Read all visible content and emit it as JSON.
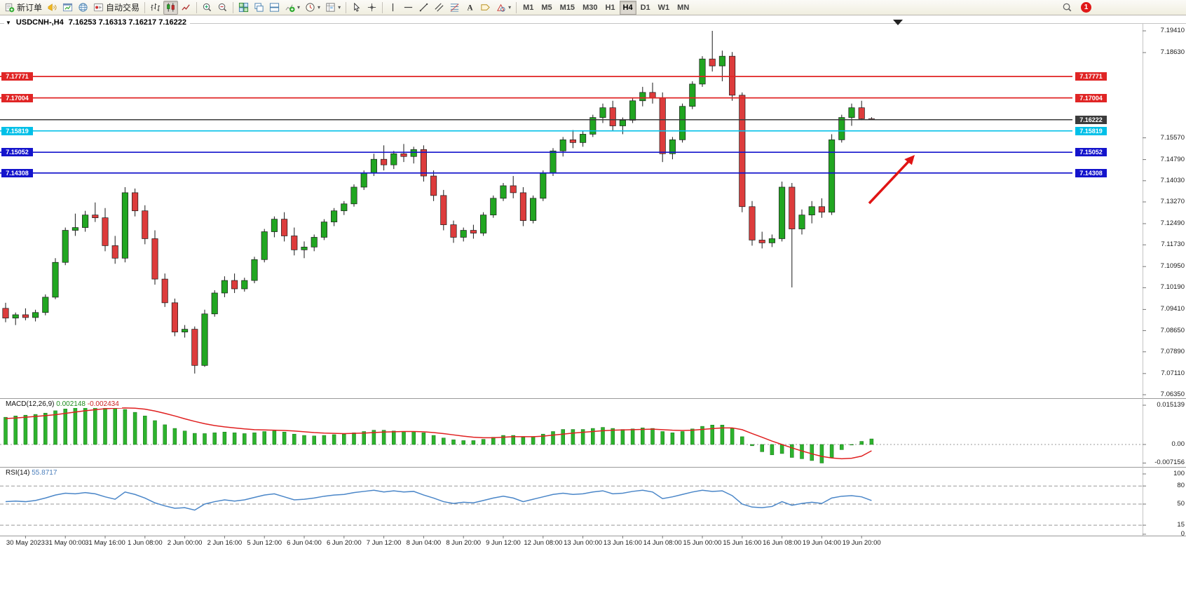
{
  "toolbar": {
    "caret_glyph": "▾",
    "notification_badge": "1",
    "active_timeframe": "H4",
    "timeframes": [
      "M1",
      "M5",
      "M15",
      "M30",
      "H1",
      "H4",
      "D1",
      "W1",
      "MN"
    ],
    "items": [
      {
        "name": "new-order-button",
        "icon": "new-order-icon",
        "label": "新订单"
      },
      {
        "name": "alerts-button",
        "icon": "alerts-horn-icon"
      },
      {
        "name": "market-watch-button",
        "icon": "chart-window-icon"
      },
      {
        "name": "web-terminal-button",
        "icon": "web-globe-icon"
      },
      {
        "name": "autotrading-button",
        "icon": "autotrading-icon",
        "label": "自动交易"
      },
      {
        "sep": true
      },
      {
        "name": "bar-chart-button",
        "icon": "bar-chart-icon"
      },
      {
        "name": "candlestick-chart-button",
        "icon": "candlestick-chart-icon",
        "pressed": true
      },
      {
        "name": "line-chart-button",
        "icon": "line-chart-icon"
      },
      {
        "sep": true
      },
      {
        "name": "zoom-in-button",
        "icon": "zoom-in-icon"
      },
      {
        "name": "zoom-out-button",
        "icon": "zoom-out-icon"
      },
      {
        "sep": true
      },
      {
        "name": "tile-windows-button",
        "icon": "tile-windows-icon"
      },
      {
        "name": "cascade-windows-button",
        "icon": "cascade-windows-icon"
      },
      {
        "name": "arrange-windows-button",
        "icon": "arrange-windows-icon"
      },
      {
        "name": "indicators-button",
        "icon": "indicators-icon",
        "caret": true
      },
      {
        "name": "periods-button",
        "icon": "periods-icon",
        "caret": true
      },
      {
        "name": "templates-button",
        "icon": "templates-icon",
        "caret": true
      },
      {
        "sep": true
      },
      {
        "name": "cursor-button",
        "icon": "cursor-icon"
      },
      {
        "name": "crosshair-button",
        "icon": "crosshair-icon"
      },
      {
        "sep": true
      },
      {
        "name": "vertical-line-button",
        "icon": "vertical-line-icon"
      },
      {
        "name": "horizontal-line-button",
        "icon": "horizontal-line-icon"
      },
      {
        "name": "trendline-button",
        "icon": "trendline-icon"
      },
      {
        "name": "channel-button",
        "icon": "channel-icon"
      },
      {
        "name": "fibonacci-button",
        "icon": "fibonacci-icon"
      },
      {
        "name": "text-button",
        "icon": "text-icon"
      },
      {
        "name": "label-button",
        "icon": "label-icon"
      },
      {
        "name": "shapes-button",
        "icon": "shapes-icon",
        "caret": true
      },
      {
        "sep": true
      }
    ],
    "right_items": [
      {
        "name": "search-button",
        "icon": "search-icon"
      }
    ]
  },
  "chart": {
    "collapse_glyph": "▼",
    "symbol": "USDCNH-,H4",
    "ohlc_text": "7.16253 7.16313 7.16217 7.16222",
    "shift_marker_glyph": "▼"
  },
  "panels": {
    "macd": {
      "name": "MACD(12,26,9)",
      "value_main": "0.002148",
      "value_signal": "-0.002434",
      "axis": [
        {
          "label": "0.015139",
          "value": 0.015139
        },
        {
          "label": "0.00",
          "value": 0
        },
        {
          "label": "-0.007156",
          "value": -0.007156
        }
      ]
    },
    "rsi": {
      "name": "RSI(14)",
      "value": "55.8717",
      "axis": [
        {
          "label": "100",
          "value": 100
        },
        {
          "label": "80",
          "value": 80
        },
        {
          "label": "50",
          "value": 50
        },
        {
          "label": "15",
          "value": 15
        },
        {
          "label": "0",
          "value": 0
        }
      ],
      "dashed_levels": [
        80,
        50,
        15
      ]
    }
  },
  "chart_data": {
    "type": "candlestick",
    "symbol": "USDCNH-",
    "timeframe": "H4",
    "ylim": [
      7.0635,
      7.1941
    ],
    "grid": false,
    "price_axis_ticks": [
      {
        "label": "7.19410",
        "value": 7.1941
      },
      {
        "label": "7.18630",
        "value": 7.1863
      },
      {
        "label": "7.15570",
        "value": 7.1557
      },
      {
        "label": "7.14790",
        "value": 7.1479
      },
      {
        "label": "7.14030",
        "value": 7.1403
      },
      {
        "label": "7.13270",
        "value": 7.1327
      },
      {
        "label": "7.12490",
        "value": 7.1249
      },
      {
        "label": "7.11730",
        "value": 7.1173
      },
      {
        "label": "7.10950",
        "value": 7.1095
      },
      {
        "label": "7.10190",
        "value": 7.1019
      },
      {
        "label": "7.09410",
        "value": 7.0941
      },
      {
        "label": "7.08650",
        "value": 7.0865
      },
      {
        "label": "7.07890",
        "value": 7.0789
      },
      {
        "label": "7.07110",
        "value": 7.0711
      },
      {
        "label": "7.06350",
        "value": 7.0635
      }
    ],
    "levels": [
      {
        "label": "7.17771",
        "value": 7.17771,
        "color": "#e02525",
        "kind": "resistance"
      },
      {
        "label": "7.17004",
        "value": 7.17004,
        "color": "#e02525",
        "kind": "resistance"
      },
      {
        "label": "7.16222",
        "value": 7.16222,
        "color": "#3c3c3c",
        "kind": "current-price",
        "current": true
      },
      {
        "label": "7.15819",
        "value": 7.15819,
        "color": "#00c0e8",
        "kind": "level"
      },
      {
        "label": "7.15052",
        "value": 7.15052,
        "color": "#1414cc",
        "kind": "support"
      },
      {
        "label": "7.14308",
        "value": 7.14308,
        "color": "#1414cc",
        "kind": "support"
      }
    ],
    "x_labels": [
      "30 May 2023",
      "31 May 00:00",
      "31 May 16:00",
      "1 Jun 08:00",
      "2 Jun 00:00",
      "2 Jun 16:00",
      "5 Jun 12:00",
      "6 Jun 04:00",
      "6 Jun 20:00",
      "7 Jun 12:00",
      "8 Jun 04:00",
      "8 Jun 20:00",
      "9 Jun 12:00",
      "12 Jun 08:00",
      "13 Jun 00:00",
      "13 Jun 16:00",
      "14 Jun 08:00",
      "15 Jun 00:00",
      "15 Jun 16:00",
      "16 Jun 08:00",
      "19 Jun 04:00",
      "19 Jun 20:00"
    ],
    "candles": [
      [
        7.0945,
        7.0965,
        7.0895,
        7.091
      ],
      [
        7.091,
        7.093,
        7.0885,
        7.0922
      ],
      [
        7.0922,
        7.0945,
        7.0902,
        7.0912
      ],
      [
        7.0912,
        7.094,
        7.0898,
        7.093
      ],
      [
        7.093,
        7.0995,
        7.092,
        7.0985
      ],
      [
        7.0985,
        7.1125,
        7.0978,
        7.111
      ],
      [
        7.111,
        7.1235,
        7.11,
        7.1225
      ],
      [
        7.1225,
        7.1285,
        7.1205,
        7.1235
      ],
      [
        7.1235,
        7.1295,
        7.122,
        7.128
      ],
      [
        7.128,
        7.1325,
        7.1255,
        7.127
      ],
      [
        7.127,
        7.1305,
        7.115,
        7.117
      ],
      [
        7.117,
        7.1205,
        7.1105,
        7.1125
      ],
      [
        7.1125,
        7.138,
        7.111,
        7.136
      ],
      [
        7.136,
        7.1375,
        7.1275,
        7.1295
      ],
      [
        7.1295,
        7.1315,
        7.1175,
        7.1195
      ],
      [
        7.1195,
        7.1225,
        7.103,
        7.105
      ],
      [
        7.105,
        7.107,
        7.095,
        7.0965
      ],
      [
        7.0965,
        7.098,
        7.0845,
        7.086
      ],
      [
        7.086,
        7.0885,
        7.084,
        7.087
      ],
      [
        7.087,
        7.088,
        7.0711,
        7.074
      ],
      [
        7.074,
        7.094,
        7.0735,
        7.0925
      ],
      [
        7.0925,
        7.101,
        7.0915,
        7.1
      ],
      [
        7.1,
        7.106,
        7.0985,
        7.1045
      ],
      [
        7.1045,
        7.107,
        7.1,
        7.1015
      ],
      [
        7.1015,
        7.1055,
        7.1005,
        7.1045
      ],
      [
        7.1045,
        7.113,
        7.1035,
        7.112
      ],
      [
        7.112,
        7.123,
        7.111,
        7.122
      ],
      [
        7.122,
        7.1275,
        7.12,
        7.1265
      ],
      [
        7.1265,
        7.129,
        7.1185,
        7.1205
      ],
      [
        7.1205,
        7.1235,
        7.1135,
        7.1155
      ],
      [
        7.1155,
        7.1185,
        7.1125,
        7.1165
      ],
      [
        7.1165,
        7.121,
        7.115,
        7.12
      ],
      [
        7.12,
        7.1265,
        7.119,
        7.1255
      ],
      [
        7.1255,
        7.1305,
        7.124,
        7.1295
      ],
      [
        7.1295,
        7.133,
        7.128,
        7.132
      ],
      [
        7.132,
        7.139,
        7.131,
        7.138
      ],
      [
        7.138,
        7.144,
        7.137,
        7.143
      ],
      [
        7.143,
        7.15,
        7.142,
        7.148
      ],
      [
        7.148,
        7.153,
        7.144,
        7.146
      ],
      [
        7.146,
        7.151,
        7.1445,
        7.15
      ],
      [
        7.15,
        7.1535,
        7.147,
        7.149
      ],
      [
        7.149,
        7.1525,
        7.1465,
        7.1515
      ],
      [
        7.1515,
        7.153,
        7.14,
        7.142
      ],
      [
        7.142,
        7.144,
        7.133,
        7.135
      ],
      [
        7.135,
        7.137,
        7.1225,
        7.1245
      ],
      [
        7.1245,
        7.126,
        7.118,
        7.12
      ],
      [
        7.12,
        7.1235,
        7.1185,
        7.1225
      ],
      [
        7.1225,
        7.1245,
        7.1195,
        7.1215
      ],
      [
        7.1215,
        7.129,
        7.1205,
        7.128
      ],
      [
        7.128,
        7.135,
        7.127,
        7.134
      ],
      [
        7.134,
        7.1395,
        7.133,
        7.1385
      ],
      [
        7.1385,
        7.142,
        7.134,
        7.136
      ],
      [
        7.136,
        7.138,
        7.124,
        7.126
      ],
      [
        7.126,
        7.135,
        7.125,
        7.134
      ],
      [
        7.134,
        7.144,
        7.133,
        7.143
      ],
      [
        7.143,
        7.152,
        7.142,
        7.151
      ],
      [
        7.151,
        7.156,
        7.149,
        7.155
      ],
      [
        7.155,
        7.1585,
        7.152,
        7.154
      ],
      [
        7.154,
        7.158,
        7.1525,
        7.157
      ],
      [
        7.157,
        7.164,
        7.156,
        7.163
      ],
      [
        7.163,
        7.168,
        7.161,
        7.1665
      ],
      [
        7.1665,
        7.169,
        7.158,
        7.16
      ],
      [
        7.16,
        7.163,
        7.157,
        7.162
      ],
      [
        7.162,
        7.17,
        7.161,
        7.169
      ],
      [
        7.169,
        7.174,
        7.167,
        7.172
      ],
      [
        7.172,
        7.1755,
        7.168,
        7.17
      ],
      [
        7.17,
        7.172,
        7.147,
        7.15
      ],
      [
        7.15,
        7.156,
        7.148,
        7.155
      ],
      [
        7.155,
        7.168,
        7.154,
        7.167
      ],
      [
        7.167,
        7.176,
        7.166,
        7.175
      ],
      [
        7.175,
        7.185,
        7.174,
        7.184
      ],
      [
        7.184,
        7.1941,
        7.1795,
        7.1815
      ],
      [
        7.1815,
        7.187,
        7.176,
        7.185
      ],
      [
        7.185,
        7.1865,
        7.169,
        7.171
      ],
      [
        7.171,
        7.172,
        7.129,
        7.131
      ],
      [
        7.131,
        7.133,
        7.117,
        7.119
      ],
      [
        7.119,
        7.122,
        7.116,
        7.118
      ],
      [
        7.118,
        7.121,
        7.1165,
        7.1195
      ],
      [
        7.1195,
        7.14,
        7.1185,
        7.138
      ],
      [
        7.138,
        7.1395,
        7.102,
        7.123
      ],
      [
        7.123,
        7.13,
        7.121,
        7.128
      ],
      [
        7.128,
        7.133,
        7.125,
        7.131
      ],
      [
        7.131,
        7.134,
        7.127,
        7.129
      ],
      [
        7.129,
        7.157,
        7.128,
        7.155
      ],
      [
        7.155,
        7.164,
        7.154,
        7.163
      ],
      [
        7.163,
        7.168,
        7.16,
        7.1665
      ],
      [
        7.1665,
        7.169,
        7.162,
        7.16253
      ],
      [
        7.16253,
        7.16313,
        7.16217,
        7.16222
      ]
    ],
    "indicators": {
      "macd": {
        "histogram": [
          0.0105,
          0.011,
          0.0113,
          0.0116,
          0.0121,
          0.013,
          0.0137,
          0.0141,
          0.0145,
          0.0148,
          0.0151,
          0.0143,
          0.0135,
          0.0124,
          0.011,
          0.0092,
          0.0076,
          0.0062,
          0.0052,
          0.0043,
          0.0042,
          0.0045,
          0.0048,
          0.0045,
          0.0042,
          0.0045,
          0.005,
          0.0052,
          0.0048,
          0.004,
          0.0035,
          0.0033,
          0.0035,
          0.0038,
          0.004,
          0.0045,
          0.005,
          0.0055,
          0.0055,
          0.0052,
          0.005,
          0.005,
          0.0045,
          0.0035,
          0.0025,
          0.0018,
          0.0015,
          0.0015,
          0.002,
          0.0028,
          0.0035,
          0.0035,
          0.0028,
          0.003,
          0.004,
          0.005,
          0.0058,
          0.0058,
          0.0058,
          0.0062,
          0.0066,
          0.0062,
          0.0058,
          0.006,
          0.0064,
          0.0062,
          0.005,
          0.0045,
          0.005,
          0.006,
          0.007,
          0.0075,
          0.0075,
          0.0062,
          0.003,
          -0.0005,
          -0.0028,
          -0.004,
          -0.0035,
          -0.005,
          -0.0055,
          -0.0062,
          -0.007156,
          -0.005,
          -0.002,
          -0.0002,
          0.0012,
          0.002148
        ],
        "signal": [
          0.01,
          0.0102,
          0.0105,
          0.0108,
          0.0111,
          0.0115,
          0.012,
          0.0125,
          0.013,
          0.0134,
          0.0138,
          0.014,
          0.0141,
          0.014,
          0.0136,
          0.0129,
          0.012,
          0.011,
          0.0099,
          0.0089,
          0.008,
          0.0073,
          0.0068,
          0.0064,
          0.006,
          0.0057,
          0.0056,
          0.0055,
          0.0054,
          0.0052,
          0.0049,
          0.0046,
          0.0044,
          0.0043,
          0.0042,
          0.0043,
          0.0044,
          0.0046,
          0.0048,
          0.0049,
          0.005,
          0.005,
          0.0049,
          0.0046,
          0.0042,
          0.0037,
          0.0032,
          0.0028,
          0.0026,
          0.0026,
          0.0028,
          0.003,
          0.003,
          0.003,
          0.0032,
          0.0036,
          0.004,
          0.0044,
          0.0047,
          0.005,
          0.0053,
          0.0055,
          0.0056,
          0.0057,
          0.0058,
          0.0059,
          0.0057,
          0.0055,
          0.0054,
          0.0055,
          0.0058,
          0.0061,
          0.0064,
          0.0064,
          0.0057,
          0.0042,
          0.0028,
          0.0013,
          0.0,
          -0.0013,
          -0.0025,
          -0.0036,
          -0.0046,
          -0.0052,
          -0.0055,
          -0.0053,
          -0.0045,
          -0.002434
        ],
        "colors": {
          "histogram": "#2db32d",
          "signal": "#e02020"
        }
      },
      "rsi": {
        "values": [
          54,
          55,
          54,
          56,
          60,
          65,
          68,
          67,
          69,
          67,
          62,
          58,
          70,
          66,
          60,
          52,
          47,
          43,
          44,
          40,
          50,
          54,
          57,
          55,
          57,
          61,
          65,
          67,
          62,
          57,
          58,
          60,
          63,
          65,
          66,
          69,
          71,
          73,
          70,
          72,
          70,
          71,
          65,
          60,
          54,
          51,
          53,
          52,
          56,
          60,
          63,
          60,
          54,
          58,
          62,
          66,
          68,
          66,
          67,
          70,
          72,
          67,
          68,
          71,
          73,
          70,
          59,
          62,
          66,
          70,
          73,
          71,
          72,
          64,
          50,
          45,
          44,
          46,
          54,
          48,
          51,
          53,
          51,
          60,
          63,
          64,
          62,
          55.87
        ],
        "color": "#4a86c8"
      }
    },
    "annotations": [
      {
        "type": "arrow",
        "color": "#e01414",
        "direction": "up-right"
      }
    ],
    "candle_colors": {
      "bull": "#21a621",
      "bear": "#dd3c3c",
      "outline": "#1a1a1a"
    }
  }
}
